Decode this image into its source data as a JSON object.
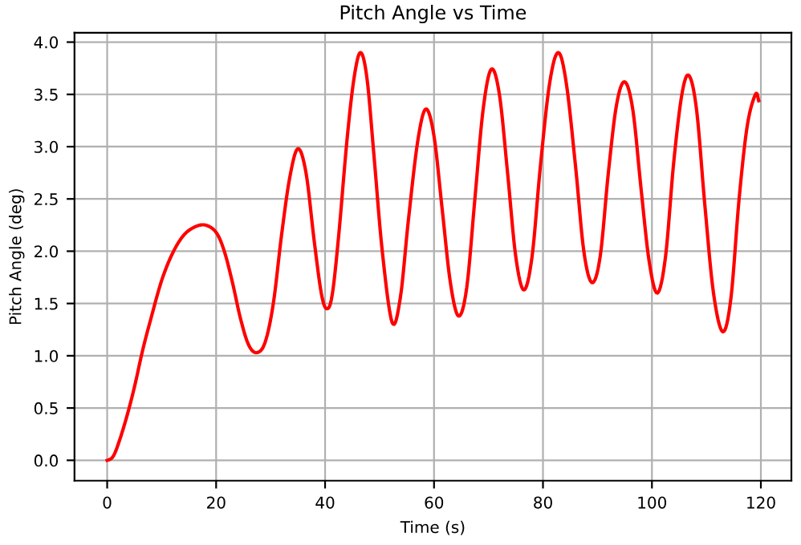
{
  "chart_data": {
    "type": "line",
    "title": "Pitch Angle vs Time",
    "xlabel": "Time (s)",
    "ylabel": "Pitch Angle (deg)",
    "x": [
      0,
      1,
      2,
      3.5,
      5,
      6.5,
      8,
      10,
      12,
      14,
      16,
      18,
      20,
      21.5,
      23,
      24.5,
      26,
      27.5,
      29,
      30.5,
      32,
      33.5,
      35,
      36.5,
      38,
      39.3,
      40.3,
      41.3,
      42.5,
      44,
      45.3,
      46.5,
      47.7,
      49,
      50.5,
      52.3,
      53.8,
      55.3,
      57,
      58.5,
      60,
      61.5,
      63,
      64.5,
      66,
      67.5,
      69,
      70.5,
      72,
      73.5,
      75,
      76.5,
      78,
      79.5,
      81.2,
      82.8,
      84.3,
      86,
      87.5,
      89,
      90.5,
      92,
      93.5,
      95,
      96.5,
      98,
      99.5,
      101,
      102.5,
      104,
      105.5,
      106.8,
      108.2,
      109.7,
      111.3,
      113,
      114.5,
      116,
      117.5,
      119,
      119.6
    ],
    "series": [
      {
        "color": "#ff0000",
        "values": [
          0,
          0.03,
          0.15,
          0.4,
          0.7,
          1.05,
          1.35,
          1.72,
          1.98,
          2.15,
          2.23,
          2.25,
          2.18,
          2.0,
          1.7,
          1.35,
          1.1,
          1.03,
          1.13,
          1.5,
          2.15,
          2.7,
          2.98,
          2.75,
          2.1,
          1.6,
          1.45,
          1.58,
          2.15,
          3.05,
          3.65,
          3.9,
          3.65,
          2.9,
          2.0,
          1.32,
          1.55,
          2.3,
          3.05,
          3.36,
          3.1,
          2.4,
          1.7,
          1.38,
          1.65,
          2.5,
          3.35,
          3.74,
          3.5,
          2.75,
          1.95,
          1.63,
          1.95,
          2.8,
          3.6,
          3.9,
          3.6,
          2.8,
          2.0,
          1.7,
          1.95,
          2.75,
          3.4,
          3.62,
          3.35,
          2.6,
          1.9,
          1.6,
          1.95,
          2.85,
          3.5,
          3.68,
          3.35,
          2.45,
          1.6,
          1.23,
          1.55,
          2.5,
          3.2,
          3.5,
          3.44
        ]
      }
    ],
    "xlim": [
      -6,
      125.6
    ],
    "ylim": [
      -0.195,
      4.09
    ],
    "xticks": [
      0,
      20,
      40,
      60,
      80,
      100,
      120
    ],
    "yticks": [
      {
        "value": 0,
        "label": "0.0"
      },
      {
        "value": 0.5,
        "label": "0.5"
      },
      {
        "value": 1,
        "label": "1.0"
      },
      {
        "value": 1.5,
        "label": "1.5"
      },
      {
        "value": 2,
        "label": "2.0"
      },
      {
        "value": 2.5,
        "label": "2.5"
      },
      {
        "value": 3,
        "label": "3.0"
      },
      {
        "value": 3.5,
        "label": "3.5"
      },
      {
        "value": 4,
        "label": "4.0"
      }
    ],
    "grid": true,
    "line_style": "solid",
    "marker": "none"
  }
}
